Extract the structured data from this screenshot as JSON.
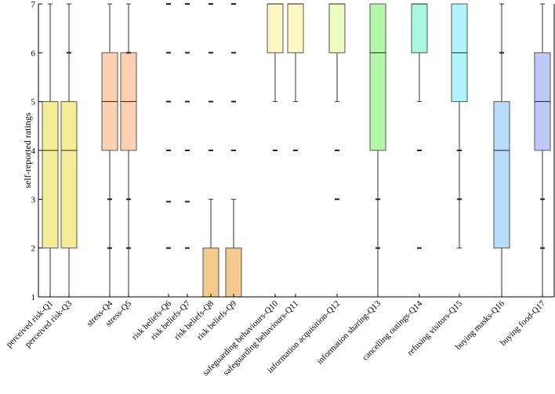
{
  "chart_data": {
    "type": "boxplot",
    "title": "",
    "xlabel": "",
    "ylabel": "self-reported ratings",
    "ylim": [
      1,
      7
    ],
    "yticks": [
      1,
      2,
      3,
      4,
      5,
      6,
      7
    ],
    "grid": false,
    "boxes": [
      {
        "label": "perceived risk-Q1",
        "color": "#f5ec98",
        "q1": 2,
        "median": 4,
        "q3": 5,
        "whisker_low": 1,
        "whisker_high": 7,
        "outliers": []
      },
      {
        "label": "perceived risk-Q3",
        "color": "#f5ec98",
        "q1": 2,
        "median": 4,
        "q3": 5,
        "whisker_low": 1,
        "whisker_high": 7,
        "outliers": [
          6
        ]
      },
      {
        "label": "stress-Q4",
        "color": "#fdd0b0",
        "q1": 4,
        "median": 5,
        "q3": 6,
        "whisker_low": 1,
        "whisker_high": 7,
        "outliers": [
          2,
          3
        ]
      },
      {
        "label": "stress-Q5",
        "color": "#fdd0b0",
        "q1": 4,
        "median": 5,
        "q3": 6,
        "whisker_low": 1,
        "whisker_high": 7,
        "outliers": [
          2,
          3,
          6
        ]
      },
      {
        "label": "risk beliefs-Q6",
        "color": "#f3c98e",
        "q1": 1,
        "median": 1,
        "q3": 1,
        "whisker_low": 1,
        "whisker_high": 1,
        "outliers": [
          2,
          2.95,
          4,
          5,
          6,
          7
        ]
      },
      {
        "label": "risk beliefs-Q7",
        "color": "#f3c98e",
        "q1": 1,
        "median": 1,
        "q3": 1,
        "whisker_low": 1,
        "whisker_high": 1,
        "outliers": [
          2,
          2.95,
          4,
          5,
          6,
          7
        ]
      },
      {
        "label": "risk beliefs-Q8",
        "color": "#f3c98e",
        "q1": 1,
        "median": 1,
        "q3": 2,
        "whisker_low": 1,
        "whisker_high": 3,
        "outliers": [
          4,
          5,
          6,
          7
        ]
      },
      {
        "label": "risk beliefs-Q9",
        "color": "#f3c98e",
        "q1": 1,
        "median": 1,
        "q3": 2,
        "whisker_low": 1,
        "whisker_high": 3,
        "outliers": [
          4,
          5,
          6,
          7
        ]
      },
      {
        "label": "safeguarding behaviours-Q10",
        "color": "#fdf7c4",
        "q1": 6,
        "median": 7,
        "q3": 7,
        "whisker_low": 5,
        "whisker_high": 7,
        "outliers": [
          4
        ]
      },
      {
        "label": "safeguarding behaviours-Q11",
        "color": "#fdf7c4",
        "q1": 6,
        "median": 7,
        "q3": 7,
        "whisker_low": 5,
        "whisker_high": 7,
        "outliers": [
          4
        ]
      },
      {
        "label": "information acquisition-Q12",
        "color": "#ecfbc0",
        "q1": 6,
        "median": 7,
        "q3": 7,
        "whisker_low": 5,
        "whisker_high": 7,
        "outliers": [
          3,
          4
        ]
      },
      {
        "label": "information sharing-Q13",
        "color": "#b4f7ab",
        "q1": 4,
        "median": 6,
        "q3": 7,
        "whisker_low": 1,
        "whisker_high": 7,
        "outliers": [
          2,
          3
        ]
      },
      {
        "label": "cancelling outings-Q14",
        "color": "#a7f7e0",
        "q1": 6,
        "median": 7,
        "q3": 7,
        "whisker_low": 5,
        "whisker_high": 7,
        "outliers": [
          2,
          4
        ]
      },
      {
        "label": "refusing visitors-Q15",
        "color": "#b0f3f8",
        "q1": 5,
        "median": 6,
        "q3": 7,
        "whisker_low": 2,
        "whisker_high": 7,
        "outliers": [
          3,
          4
        ]
      },
      {
        "label": "buying masks-Q16",
        "color": "#b6dcf8",
        "q1": 2,
        "median": 4,
        "q3": 5,
        "whisker_low": 1,
        "whisker_high": 7,
        "outliers": [
          6
        ]
      },
      {
        "label": "buying food-Q17",
        "color": "#c0c8f8",
        "q1": 4,
        "median": 5,
        "q3": 6,
        "whisker_low": 1,
        "whisker_high": 7,
        "outliers": [
          2,
          3
        ]
      }
    ]
  }
}
